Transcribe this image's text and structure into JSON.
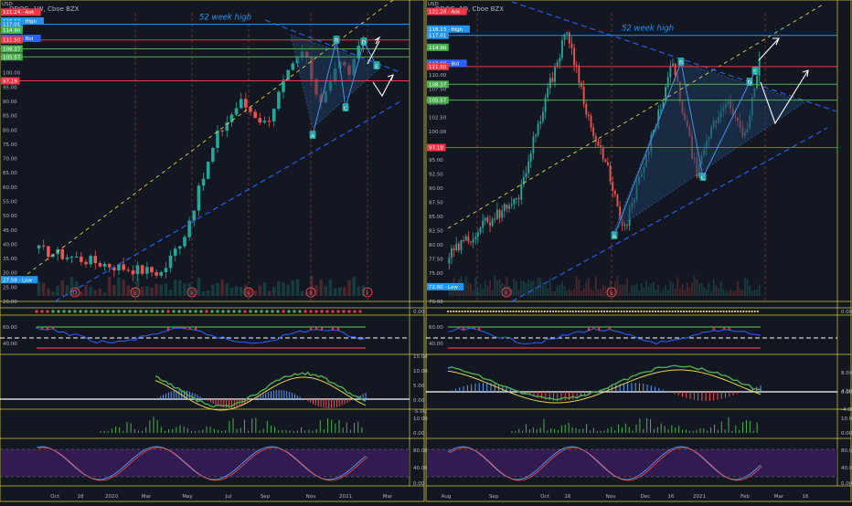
{
  "colors": {
    "bg": "#131722",
    "frame": "#d1c93a",
    "grid": "#1e2230",
    "up": "#26a69a",
    "down": "#ef5350",
    "resistance": "#f23645",
    "support": "#4caf50",
    "blue_line": "#2962ff",
    "yellow_dashed": "#e8d44d",
    "triangle_fill": "#1e3a5f",
    "axis_text": "#b2b5be",
    "week52": "#2196f3",
    "ask": "#f23645",
    "bid": "#2962ff",
    "high": "#2196f3",
    "low": "#2196f3",
    "green_label": "#4caf50",
    "stoch_fill": "#3b1d5c",
    "rsi_red": "#f23645",
    "rsi_green": "#4caf50",
    "white": "#ffffff"
  },
  "left_panel": {
    "title": "DDOG, 1W, Cboe BZX",
    "usd_label": "USD",
    "week52_label": "52 week high",
    "price_tags": [
      {
        "text": "121.24 · Ask",
        "price": 121.24,
        "kind": "ask"
      },
      {
        "text": "118.13 · High",
        "price": 118.13,
        "kind": "high"
      },
      {
        "text": "117.01",
        "price": 117.01,
        "kind": "week52"
      },
      {
        "text": "114.90",
        "price": 114.9,
        "kind": "green"
      },
      {
        "text": "112.06 · Bid",
        "price": 112.06,
        "kind": "bid"
      },
      {
        "text": "111.50",
        "price": 111.5,
        "kind": "ask"
      },
      {
        "text": "108.37",
        "price": 108.37,
        "kind": "green"
      },
      {
        "text": "105.57",
        "price": 105.57,
        "kind": "green"
      },
      {
        "text": "97.19",
        "price": 97.19,
        "kind": "ask"
      },
      {
        "text": "27.59 · Low",
        "price": 27.59,
        "kind": "low"
      }
    ],
    "y_ticks": [
      "100.00",
      "95.00",
      "90.00",
      "85.00",
      "80.00",
      "75.00",
      "70.00",
      "65.00",
      "60.00",
      "55.00",
      "50.00",
      "45.00",
      "40.00",
      "35.00",
      "30.00",
      "25.00",
      "20.00"
    ],
    "x_ticks": [
      "Oct",
      "18",
      "2020",
      "Mar",
      "May",
      "Jul",
      "Sep",
      "Nov",
      "2021",
      "Mar"
    ],
    "markers": [
      "D",
      "E",
      "E",
      "E",
      "E",
      "E"
    ],
    "wave_labels": [
      "A",
      "B",
      "C",
      "D",
      "E"
    ],
    "rsi_ticks": [
      "60.00",
      "40.00"
    ],
    "macd_ticks": [
      "15.00",
      "10.00",
      "5.00",
      "0.00",
      "-5.00"
    ],
    "vol_ticks": [
      "10.00",
      "0.00"
    ],
    "stoch_ticks": [
      "80.00",
      "40.00",
      "0.00"
    ],
    "dot_value": "0.00"
  },
  "right_panel": {
    "title": "DDOG, 1D, Cboe BZX",
    "usd_label": "USD",
    "week52_label": "52 week high",
    "price_tags": [
      {
        "text": "121.24 · Ask",
        "price": 121.24,
        "kind": "ask"
      },
      {
        "text": "118.13 · High",
        "price": 118.13,
        "kind": "high"
      },
      {
        "text": "117.01",
        "price": 117.01,
        "kind": "week52"
      },
      {
        "text": "114.90",
        "price": 114.9,
        "kind": "green"
      },
      {
        "text": "112.08 · Bid",
        "price": 112.08,
        "kind": "bid"
      },
      {
        "text": "111.50",
        "price": 111.5,
        "kind": "ask"
      },
      {
        "text": "108.37",
        "price": 108.37,
        "kind": "green"
      },
      {
        "text": "105.57",
        "price": 105.57,
        "kind": "green"
      },
      {
        "text": "97.19",
        "price": 97.19,
        "kind": "ask"
      },
      {
        "text": "72.60 · Low",
        "price": 72.6,
        "kind": "low"
      }
    ],
    "y_ticks": [
      "110.00",
      "107.50",
      "105.00",
      "102.50",
      "100.00",
      "97.50",
      "95.00",
      "92.50",
      "90.00",
      "87.50",
      "85.00",
      "82.50",
      "80.00",
      "77.50",
      "75.00",
      "72.50",
      "70.00"
    ],
    "x_ticks": [
      "Aug",
      "Sep",
      "Oct",
      "16",
      "Nov",
      "Dec",
      "16",
      "2021",
      "Feb",
      "Mar",
      "16"
    ],
    "markers": [
      "E",
      "E"
    ],
    "wave_labels": [
      "A",
      "B",
      "C",
      "D",
      "E"
    ],
    "rsi_ticks": [
      "60.00",
      "40.00"
    ],
    "macd_ticks": [
      "8.00",
      "4.00",
      "0.00",
      "-4.00"
    ],
    "vol_ticks": [
      "10.00",
      "0.00"
    ],
    "stoch_ticks": [
      "80.00",
      "40.00",
      "0.00"
    ],
    "dot_value": "0.00"
  },
  "chart_data": [
    {
      "type": "candlestick",
      "title": "DDOG, 1W, Cboe BZX",
      "timeframe": "1W",
      "ylim": [
        20,
        121
      ],
      "price_range": {
        "start": 38,
        "low": 27.59,
        "high": 118.13,
        "end": 112
      },
      "levels": {
        "week52_high": 117.01,
        "resistance": [
          111.5,
          97.19
        ],
        "support": [
          108.37,
          105.57
        ]
      },
      "indicators": [
        "RSI",
        "MACD",
        "Histogram",
        "Stochastic"
      ]
    },
    {
      "type": "candlestick",
      "title": "DDOG, 1D, Cboe BZX",
      "timeframe": "1D",
      "ylim": [
        70,
        121
      ],
      "price_range": {
        "start": 78,
        "low": 72.6,
        "high": 118.13,
        "end": 112
      },
      "levels": {
        "week52_high": 117.01,
        "resistance": [
          111.5,
          97.19
        ],
        "support": [
          108.37,
          105.57
        ]
      },
      "indicators": [
        "RSI",
        "MACD",
        "Histogram",
        "Stochastic"
      ]
    }
  ]
}
